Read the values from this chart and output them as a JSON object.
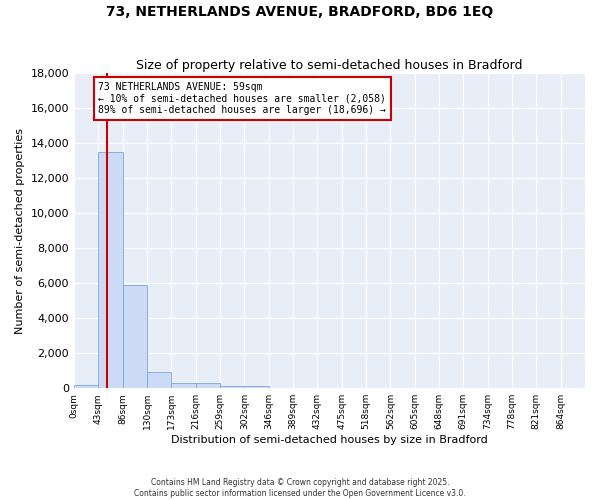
{
  "title": "73, NETHERLANDS AVENUE, BRADFORD, BD6 1EQ",
  "subtitle": "Size of property relative to semi-detached houses in Bradford",
  "xlabel": "Distribution of semi-detached houses by size in Bradford",
  "ylabel": "Number of semi-detached properties",
  "property_size": 59,
  "smaller_pct": 10,
  "smaller_n": "2,058",
  "larger_pct": 89,
  "larger_n": "18,696",
  "annotation_text": "73 NETHERLANDS AVENUE: 59sqm\n← 10% of semi-detached houses are smaller (2,058)\n89% of semi-detached houses are larger (18,696) →",
  "bin_edges": [
    0,
    43,
    86,
    129,
    172,
    215,
    258,
    301,
    344,
    387,
    430,
    473,
    516,
    559,
    602,
    645,
    688,
    731,
    774,
    817,
    860
  ],
  "bin_counts": [
    200,
    13500,
    5900,
    900,
    300,
    300,
    150,
    150,
    0,
    0,
    0,
    0,
    0,
    0,
    0,
    0,
    0,
    0,
    0,
    0
  ],
  "tick_labels": [
    "0sqm",
    "43sqm",
    "86sqm",
    "130sqm",
    "173sqm",
    "216sqm",
    "259sqm",
    "302sqm",
    "346sqm",
    "389sqm",
    "432sqm",
    "475sqm",
    "518sqm",
    "562sqm",
    "605sqm",
    "648sqm",
    "691sqm",
    "734sqm",
    "778sqm",
    "821sqm",
    "864sqm"
  ],
  "bar_color": "#ccdaf5",
  "bar_edge_color": "#7aa8d8",
  "red_line_color": "#cc0000",
  "annotation_box_color": "#cc0000",
  "ylim": [
    0,
    18000
  ],
  "xlim_max": 903,
  "background_color": "#e8eef8",
  "grid_color": "#ffffff",
  "footer_text": "Contains HM Land Registry data © Crown copyright and database right 2025.\nContains public sector information licensed under the Open Government Licence v3.0."
}
